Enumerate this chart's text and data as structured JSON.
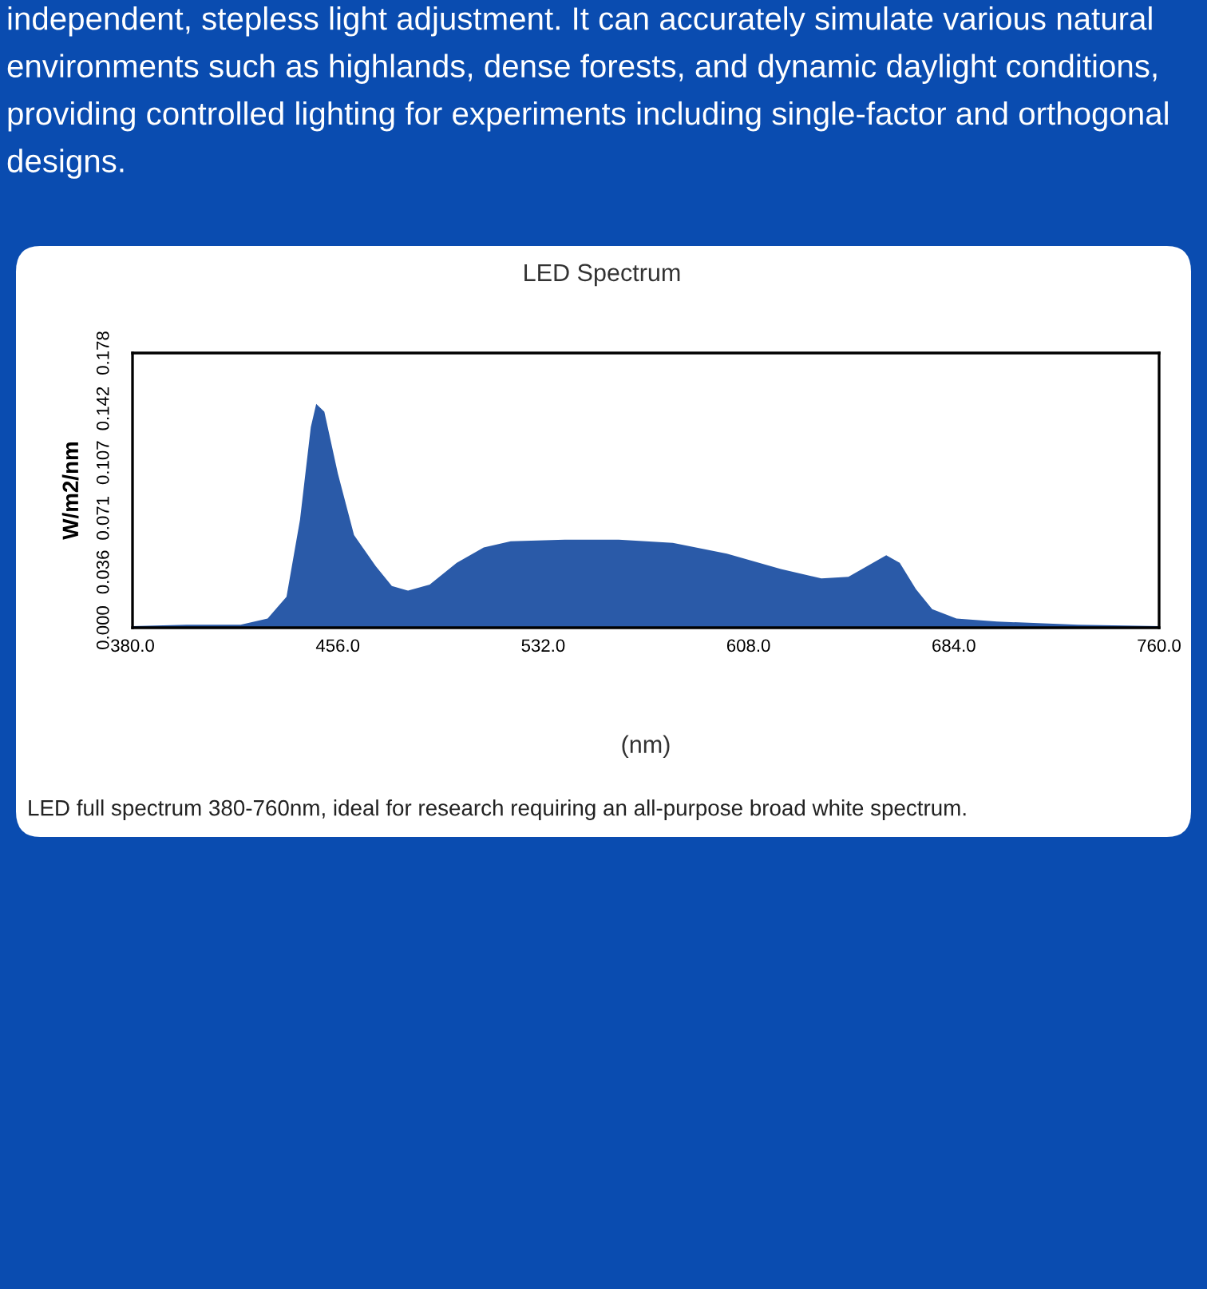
{
  "chart_data": {
    "type": "area",
    "title": "LED Spectrum",
    "xlabel": "(nm)",
    "ylabel": "W/m2/nm",
    "annotations": [
      "independent, stepless light adjustment. It can accurately simulate various natural environments such as highlands, dense forests, and dynamic daylight conditions, providing controlled lighting for experiments including single-factor and orthogonal designs.",
      "LED full spectrum 380-760nm, ideal for research requiring an all-purpose broad white spectrum."
    ],
    "x": [
      380,
      400,
      420,
      430,
      437,
      442,
      446,
      448,
      451,
      456,
      462,
      470,
      476,
      482,
      490,
      500,
      510,
      520,
      540,
      560,
      580,
      600,
      620,
      635,
      645,
      652,
      659,
      664,
      670,
      676,
      685,
      700,
      730,
      760
    ],
    "series": [
      {
        "values": [
          0.001,
          0.002,
          0.002,
          0.006,
          0.02,
          0.07,
          0.13,
          0.145,
          0.14,
          0.1,
          0.06,
          0.04,
          0.027,
          0.024,
          0.028,
          0.042,
          0.052,
          0.056,
          0.057,
          0.057,
          0.055,
          0.048,
          0.038,
          0.032,
          0.033,
          0.04,
          0.047,
          0.042,
          0.025,
          0.012,
          0.006,
          0.004,
          0.002,
          0.001
        ],
        "color": "#2a5aa8"
      }
    ],
    "xlim": [
      380,
      760
    ],
    "ylim": [
      0,
      0.178
    ],
    "xticks": [
      {
        "value": 380,
        "label": "380.0"
      },
      {
        "value": 456,
        "label": "456.0"
      },
      {
        "value": 532,
        "label": "532.0"
      },
      {
        "value": 608,
        "label": "608.0"
      },
      {
        "value": 684,
        "label": "684.0"
      },
      {
        "value": 760,
        "label": "760.0"
      }
    ],
    "yticks": [
      {
        "value": 0,
        "label": "0.000"
      },
      {
        "value": 0.036,
        "label": "0.036"
      },
      {
        "value": 0.071,
        "label": "0.071"
      },
      {
        "value": 0.107,
        "label": "0.107"
      },
      {
        "value": 0.142,
        "label": "0.142"
      },
      {
        "value": 0.178,
        "label": "0.178"
      }
    ],
    "grid": false,
    "legend": false
  }
}
